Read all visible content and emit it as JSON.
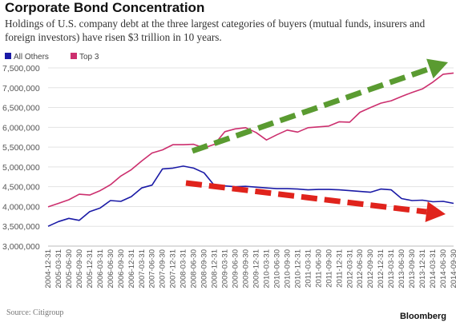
{
  "chart_data": {
    "type": "line",
    "title": "Corporate Bond Concentration",
    "subtitle": "Holdings of U.S. company debt at the three largest categories of buyers (mutual funds, insurers and foreign investors) have risen $3 trillion in 10 years.",
    "xlabel": "",
    "ylabel": "",
    "ylim": [
      3000000,
      7500000
    ],
    "ytick_labels": [
      "3,000,000",
      "3,500,000",
      "4,000,000",
      "4,500,000",
      "5,000,000",
      "5,500,000",
      "6,000,000",
      "6,500,000",
      "7,000,000",
      "7,500,000"
    ],
    "categories": [
      "2004-12-31",
      "2005-03-31",
      "2005-06-30",
      "2005-09-30",
      "2005-12-31",
      "2006-03-31",
      "2006-06-30",
      "2006-09-30",
      "2006-12-31",
      "2007-03-31",
      "2007-06-30",
      "2007-09-30",
      "2007-12-31",
      "2008-03-31",
      "2008-06-30",
      "2008-09-30",
      "2008-12-31",
      "2009-03-31",
      "2009-06-30",
      "2009-09-30",
      "2009-12-31",
      "2010-03-31",
      "2010-06-30",
      "2010-09-30",
      "2010-12-31",
      "2011-03-31",
      "2011-06-30",
      "2011-09-30",
      "2011-12-31",
      "2012-03-31",
      "2012-06-30",
      "2012-09-30",
      "2012-12-31",
      "2013-03-31",
      "2013-06-30",
      "2013-09-30",
      "2013-12-31",
      "2014-03-31",
      "2014-06-30",
      "2014-09-30"
    ],
    "series": [
      {
        "name": "All Others",
        "color": "#1a1aa6",
        "values": [
          3500000,
          3620000,
          3700000,
          3650000,
          3870000,
          3960000,
          4150000,
          4130000,
          4250000,
          4470000,
          4540000,
          4950000,
          4970000,
          5020000,
          4970000,
          4850000,
          4530000,
          4520000,
          4500000,
          4510000,
          4490000,
          4470000,
          4450000,
          4450000,
          4440000,
          4420000,
          4430000,
          4430000,
          4420000,
          4400000,
          4380000,
          4360000,
          4440000,
          4420000,
          4200000,
          4150000,
          4160000,
          4120000,
          4130000,
          4080000
        ]
      },
      {
        "name": "Top 3",
        "color": "#cc2f6e",
        "values": [
          3990000,
          4080000,
          4170000,
          4310000,
          4290000,
          4400000,
          4550000,
          4770000,
          4930000,
          5150000,
          5350000,
          5430000,
          5560000,
          5560000,
          5570000,
          5480000,
          5570000,
          5890000,
          5960000,
          5990000,
          5870000,
          5680000,
          5810000,
          5930000,
          5880000,
          5990000,
          6010000,
          6030000,
          6140000,
          6130000,
          6380000,
          6500000,
          6610000,
          6670000,
          6780000,
          6880000,
          6970000,
          7140000,
          7340000,
          7370000
        ]
      }
    ],
    "legend": "top-left",
    "grid": true,
    "annotations": [
      {
        "kind": "dashed-arrow",
        "color": "#5a9b31",
        "direction": "up"
      },
      {
        "kind": "dashed-arrow",
        "color": "#e0231c",
        "direction": "down"
      }
    ]
  },
  "footer": {
    "source": "Source: Citigroup",
    "brand": "Bloomberg"
  }
}
